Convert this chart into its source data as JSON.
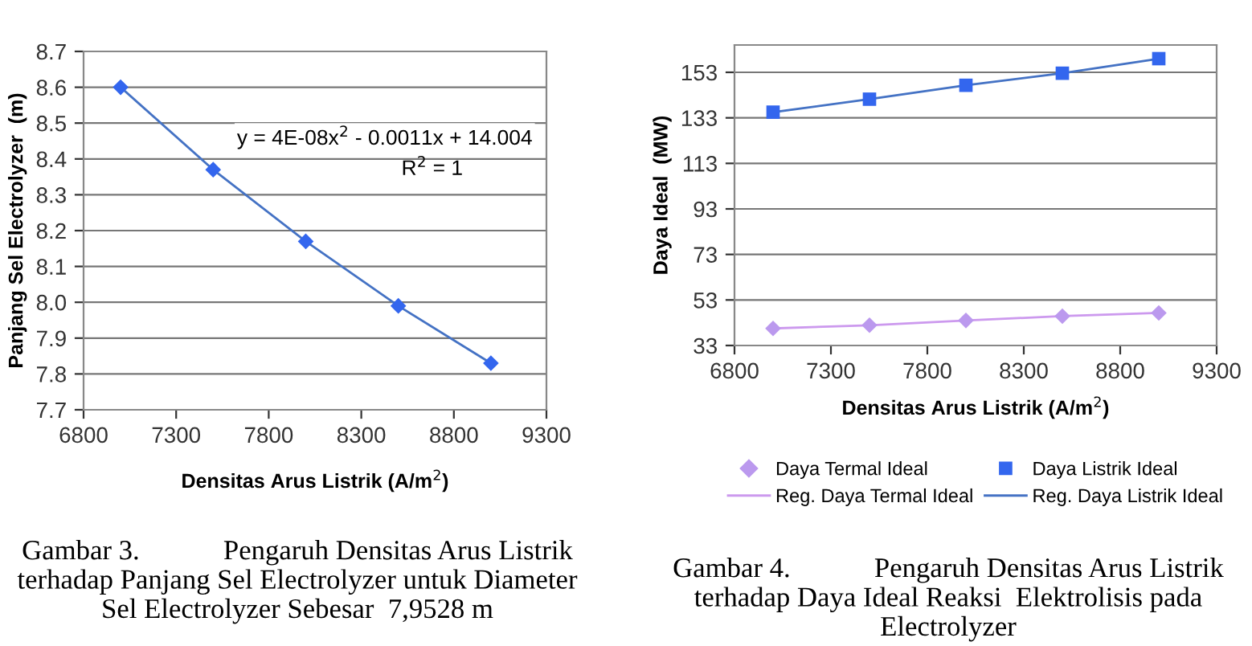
{
  "chart_data": [
    {
      "type": "scatter",
      "xlabel": "Densitas Arus Listrik (A/m$^{2}$)",
      "ylabel": "Panjang Sel Electrolyzer  (m)",
      "x": [
        7000,
        7500,
        8000,
        8500,
        9000
      ],
      "series": [
        {
          "color": "#3366ee",
          "marker": "diamond",
          "values": [
            8.6,
            8.37,
            8.17,
            7.99,
            7.83
          ]
        },
        {
          "type": "line",
          "color": "#4472c4",
          "marker": "none",
          "values": [
            8.6,
            8.37,
            8.17,
            7.99,
            7.83
          ]
        }
      ],
      "xlim": [
        6800,
        9300
      ],
      "xticks": [
        6800,
        7300,
        7800,
        8300,
        8800,
        9300
      ],
      "ylim": [
        7.7,
        8.7
      ],
      "yticks": [
        {
          "value": 7.7,
          "label": "7.7"
        },
        {
          "value": 7.8,
          "label": "7.8"
        },
        {
          "value": 7.9,
          "label": "7.9"
        },
        {
          "value": 8.0,
          "label": "8.0"
        },
        {
          "value": 8.1,
          "label": "8.1"
        },
        {
          "value": 8.2,
          "label": "8.2"
        },
        {
          "value": 8.3,
          "label": "8.3"
        },
        {
          "value": 8.4,
          "label": "8.4"
        },
        {
          "value": 8.5,
          "label": "8.5"
        },
        {
          "value": 8.6,
          "label": "8.6"
        },
        {
          "value": 8.7,
          "label": "8.7"
        }
      ],
      "grid": "y",
      "legend": false,
      "annotations": [
        "y = 4E-08x$^{2}$ - 0.0011x + 14.004",
        "R$^{2}$ = 1",
        "Gambar 3.            Pengaruh Densitas Arus Listrik\nterhadap Panjang Sel Electrolyzer untuk Diameter\nSel Electrolyzer Sebesar  7,9528 m"
      ]
    },
    {
      "type": "scatter",
      "xlabel": "Densitas Arus Listrik (A/m$^{2}$)",
      "ylabel": "Daya Ideal  (MW)",
      "x": [
        7000,
        7500,
        8000,
        8500,
        9000
      ],
      "series": [
        {
          "name": "Daya Termal Ideal",
          "color": "#bb99ee",
          "marker": "diamond",
          "values": [
            40.5,
            41.9,
            44,
            45.9,
            47.3
          ]
        },
        {
          "name": "Daya Listrik Ideal",
          "color": "#3366ee",
          "marker": "square",
          "values": [
            135.5,
            141.2,
            147.3,
            152.6,
            159
          ]
        },
        {
          "name": "Reg. Daya Termal Ideal",
          "type": "line",
          "color": "#cc99ee",
          "marker": "none",
          "values": [
            40.5,
            41.9,
            44,
            45.9,
            47.3
          ]
        },
        {
          "name": "Reg. Daya Listrik Ideal",
          "type": "line",
          "color": "#4472c4",
          "marker": "none",
          "values": [
            135.5,
            141.2,
            147.3,
            152.6,
            159
          ]
        }
      ],
      "xlim": [
        6800,
        9300
      ],
      "xticks": [
        6800,
        7300,
        7800,
        8300,
        8800,
        9300
      ],
      "ylim": [
        33,
        165
      ],
      "yticks": [
        33,
        53,
        73,
        93,
        113,
        133,
        153
      ],
      "grid": "y",
      "legend": "bottom",
      "annotations": [
        "Gambar 4.            Pengaruh Densitas Arus Listrik\nterhadap Daya Ideal Reaksi  Elektrolisis pada\nElectrolyzer"
      ]
    }
  ]
}
